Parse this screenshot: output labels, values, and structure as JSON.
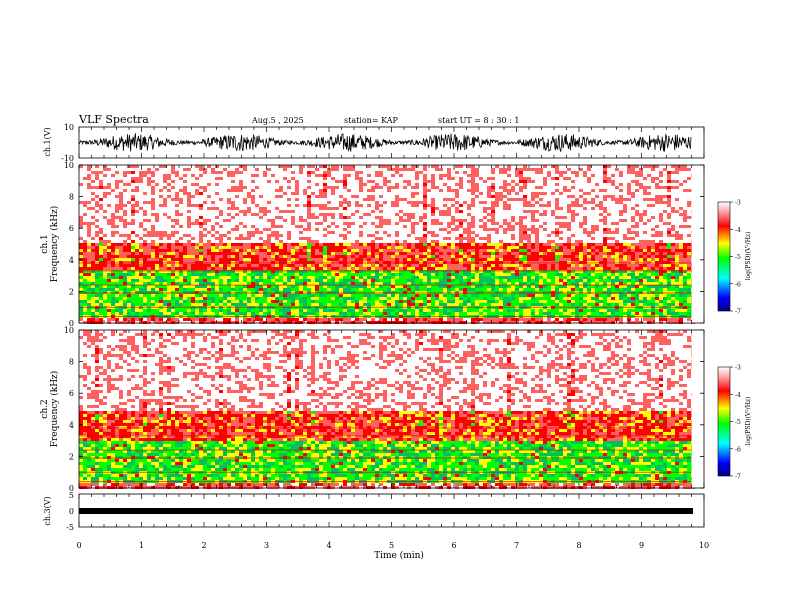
{
  "header": {
    "title": "VLF Spectra",
    "date": "Aug.5 , 2025",
    "station": "station= KAP",
    "start": "start UT = 8 : 30 : 1"
  },
  "chart_data": [
    {
      "type": "line",
      "name": "ch1-waveform",
      "ylabel": "ch.1(V)",
      "ylim": [
        -10,
        10
      ],
      "yticks": [
        "10",
        "-10"
      ],
      "xlim": [
        0,
        10
      ],
      "description_series": "broadband amplitude, roughly -5 to 5 V"
    },
    {
      "type": "heatmap",
      "name": "ch1-spectrogram",
      "ylabel": "ch.1\nFrequency (kHz)",
      "ylim": [
        0,
        10
      ],
      "yticks": [
        "0",
        "2",
        "4",
        "6",
        "8",
        "10"
      ],
      "xlim": [
        0,
        10
      ],
      "bands": [
        {
          "from": 0.0,
          "to": 0.5,
          "level": -3.6
        },
        {
          "from": 0.5,
          "to": 3.5,
          "level": -4.6
        },
        {
          "from": 3.5,
          "to": 5.2,
          "level": -3.9
        },
        {
          "from": 5.2,
          "to": 10.0,
          "level": -3.2
        }
      ],
      "colorbar": {
        "label": "log(PSD)(V²/Hz)",
        "ticks": [
          "-3",
          "-4",
          "-5",
          "-6",
          "-7"
        ],
        "range": [
          -7,
          -3
        ]
      }
    },
    {
      "type": "heatmap",
      "name": "ch2-spectrogram",
      "ylabel": "ch.2\nFrequency (kHz)",
      "ylim": [
        0,
        10
      ],
      "yticks": [
        "0",
        "2",
        "4",
        "6",
        "8",
        "10"
      ],
      "xlim": [
        0,
        10
      ],
      "bands": [
        {
          "from": 0.0,
          "to": 0.5,
          "level": -3.6
        },
        {
          "from": 0.5,
          "to": 3.0,
          "level": -4.6
        },
        {
          "from": 3.0,
          "to": 5.0,
          "level": -3.9
        },
        {
          "from": 5.0,
          "to": 10.0,
          "level": -3.2
        }
      ],
      "colorbar": {
        "label": "log(PSD)(V²/Hz)",
        "ticks": [
          "-3",
          "-4",
          "-5",
          "-6",
          "-7"
        ],
        "range": [
          -7,
          -3
        ]
      }
    },
    {
      "type": "line",
      "name": "ch3-waveform",
      "ylabel": "ch.3(V)",
      "ylim": [
        -5,
        5
      ],
      "yticks": [
        "5",
        "0",
        "-5"
      ],
      "xlim": [
        0,
        10
      ],
      "end_time": 9.8
    }
  ],
  "xaxis": {
    "label": "Time (min)",
    "ticks": [
      "0",
      "1",
      "2",
      "3",
      "4",
      "5",
      "6",
      "7",
      "8",
      "9",
      "10"
    ],
    "range": [
      0,
      10
    ],
    "data_end": 9.8
  },
  "colors": {
    "high": "#ff0000",
    "mid": "#ffff00",
    "low": "#00ff00",
    "background": "#ffffff"
  }
}
